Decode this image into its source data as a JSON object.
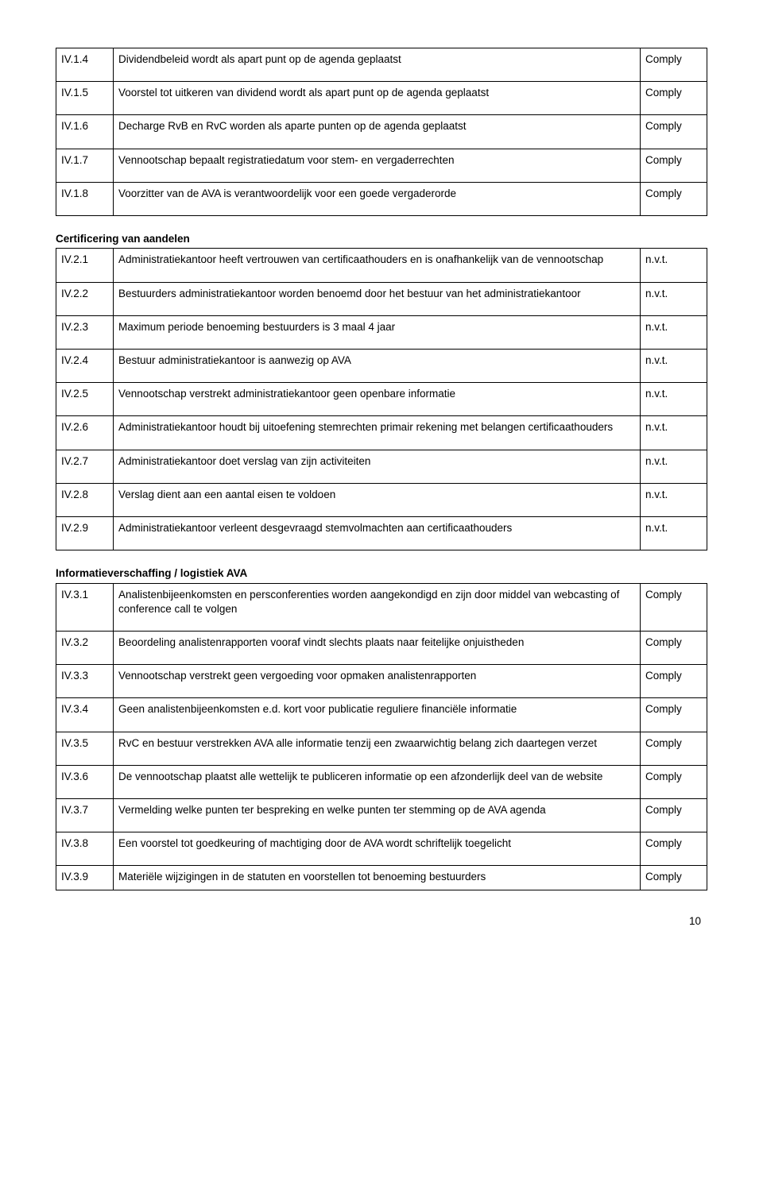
{
  "sectionA": {
    "rows": [
      {
        "code": "IV.1.4",
        "desc": "Dividendbeleid wordt als apart punt op de agenda geplaatst",
        "status": "Comply"
      },
      {
        "code": "IV.1.5",
        "desc": "Voorstel tot uitkeren van dividend wordt als apart punt op de agenda geplaatst",
        "status": "Comply"
      },
      {
        "code": "IV.1.6",
        "desc": "Decharge RvB en RvC worden als aparte punten op de agenda geplaatst",
        "status": "Comply"
      },
      {
        "code": "IV.1.7",
        "desc": "Vennootschap bepaalt registratiedatum voor stem- en vergaderrechten",
        "status": "Comply"
      },
      {
        "code": "IV.1.8",
        "desc": "Voorzitter van de AVA is verantwoordelijk voor een goede vergaderorde",
        "status": "Comply"
      }
    ]
  },
  "sectionB": {
    "title": "Certificering van aandelen",
    "rows": [
      {
        "code": "IV.2.1",
        "desc": "Administratiekantoor heeft vertrouwen van certificaathouders en is onafhankelijk van de vennootschap",
        "status": "n.v.t."
      },
      {
        "code": "IV.2.2",
        "desc": "Bestuurders administratiekantoor worden benoemd door het bestuur van het administratiekantoor",
        "status": "n.v.t."
      },
      {
        "code": "IV.2.3",
        "desc": "Maximum periode benoeming bestuurders is 3 maal 4 jaar",
        "status": "n.v.t."
      },
      {
        "code": "IV.2.4",
        "desc": "Bestuur administratiekantoor is aanwezig op AVA",
        "status": "n.v.t."
      },
      {
        "code": "IV.2.5",
        "desc": "Vennootschap verstrekt administratiekantoor geen openbare informatie",
        "status": "n.v.t."
      },
      {
        "code": "IV.2.6",
        "desc": "Administratiekantoor houdt bij uitoefening stemrechten primair rekening met belangen certificaathouders",
        "status": "n.v.t."
      },
      {
        "code": "IV.2.7",
        "desc": "Administratiekantoor doet verslag van zijn activiteiten",
        "status": "n.v.t."
      },
      {
        "code": "IV.2.8",
        "desc": "Verslag dient aan een aantal eisen te voldoen",
        "status": "n.v.t."
      },
      {
        "code": "IV.2.9",
        "desc": "Administratiekantoor verleent desgevraagd stemvolmachten aan certificaathouders",
        "status": "n.v.t."
      }
    ]
  },
  "sectionC": {
    "title": "Informatieverschaffing / logistiek AVA",
    "rows": [
      {
        "code": "IV.3.1",
        "desc": "Analistenbijeenkomsten en persconferenties worden aangekondigd en zijn door middel van webcasting of conference call te volgen",
        "status": "Comply"
      },
      {
        "code": "IV.3.2",
        "desc": "Beoordeling analistenrapporten vooraf vindt slechts plaats naar feitelijke onjuistheden",
        "status": "Comply"
      },
      {
        "code": "IV.3.3",
        "desc": "Vennootschap verstrekt geen vergoeding voor opmaken analistenrapporten",
        "status": "Comply"
      },
      {
        "code": "IV.3.4",
        "desc": "Geen analistenbijeenkomsten e.d. kort voor publicatie reguliere financiële informatie",
        "status": "Comply"
      },
      {
        "code": "IV.3.5",
        "desc": "RvC en bestuur verstrekken AVA alle informatie tenzij een zwaarwichtig belang zich daartegen verzet",
        "status": "Comply"
      },
      {
        "code": "IV.3.6",
        "desc": "De vennootschap plaatst alle wettelijk te publiceren informatie op een afzonderlijk deel van de website",
        "status": "Comply"
      },
      {
        "code": "IV.3.7",
        "desc": "Vermelding welke punten ter bespreking en welke punten ter stemming op de AVA agenda",
        "status": "Comply"
      },
      {
        "code": "IV.3.8",
        "desc": "Een voorstel tot goedkeuring of machtiging door de AVA wordt schriftelijk toegelicht",
        "status": "Comply"
      },
      {
        "code": "IV.3.9",
        "desc": "Materiële wijzigingen in de statuten en voorstellen tot benoeming bestuurders",
        "status": "Comply"
      }
    ]
  },
  "pageNumber": "10"
}
